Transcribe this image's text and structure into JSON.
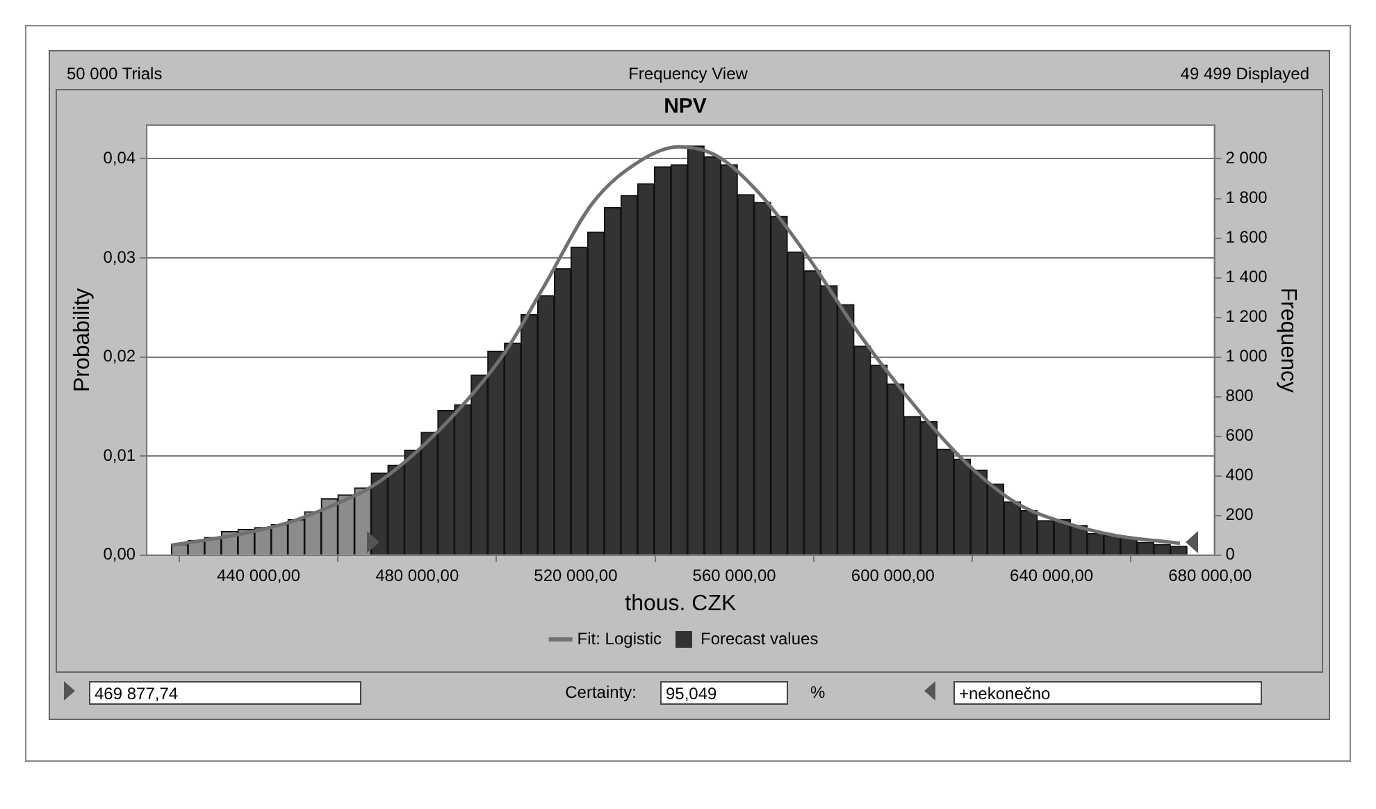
{
  "chart_data": {
    "type": "histogram",
    "title": "NPV",
    "xlabel": "thous. CZK",
    "ylabel": "Probability",
    "y2label": "Frequency",
    "annotations": [
      "50 000 Trials",
      "Frequency View",
      "49 499 Displayed",
      "469 877,74",
      "Certainty:",
      "95,049",
      "%",
      "+nekonečno"
    ],
    "bins": [
      418000,
      422200,
      426400,
      430600,
      434800,
      439000,
      443200,
      447400,
      451600,
      455800,
      460000,
      464200,
      468400,
      472600,
      476800,
      481000,
      485200,
      489400,
      493600,
      497800,
      502000,
      506200,
      510400,
      514600,
      518800,
      523000,
      527200,
      531400,
      535600,
      539800,
      544000,
      548200,
      552400,
      556600,
      560800,
      565000,
      569200,
      573400,
      577600,
      581800,
      586000,
      590200,
      594400,
      598600,
      602800,
      607000,
      611200,
      615400,
      619600,
      623800,
      628000,
      632200,
      636400,
      640600,
      644800,
      649000,
      653200,
      657400,
      661600,
      665800,
      670000,
      674200
    ],
    "series": [
      {
        "name": "Forecast values",
        "color": "#333333",
        "colors": [
          "#8c8c8c",
          "#8c8c8c",
          "#8c8c8c",
          "#8c8c8c",
          "#8c8c8c",
          "#8c8c8c",
          "#8c8c8c",
          "#8c8c8c",
          "#8c8c8c",
          "#8c8c8c",
          "#8c8c8c",
          "#8c8c8c",
          "#333333",
          "#333333",
          "#333333",
          "#333333",
          "#333333",
          "#333333",
          "#333333",
          "#333333",
          "#333333",
          "#333333",
          "#333333",
          "#333333",
          "#333333",
          "#333333",
          "#333333",
          "#333333",
          "#333333",
          "#333333",
          "#333333",
          "#333333",
          "#333333",
          "#333333",
          "#333333",
          "#333333",
          "#333333",
          "#333333",
          "#333333",
          "#333333",
          "#333333",
          "#333333",
          "#333333",
          "#333333",
          "#333333",
          "#333333",
          "#333333",
          "#333333",
          "#333333",
          "#333333",
          "#333333",
          "#333333",
          "#333333",
          "#333333",
          "#333333",
          "#333333",
          "#333333",
          "#333333",
          "#333333",
          "#333333",
          "#333333"
        ],
        "values": [
          0.0011,
          0.0015,
          0.0018,
          0.0024,
          0.0026,
          0.0028,
          0.0031,
          0.0036,
          0.0044,
          0.0057,
          0.0061,
          0.0068,
          0.0083,
          0.0091,
          0.0106,
          0.0124,
          0.0146,
          0.0152,
          0.0182,
          0.0206,
          0.0214,
          0.0243,
          0.0262,
          0.0289,
          0.0311,
          0.0326,
          0.0351,
          0.0363,
          0.0375,
          0.0392,
          0.0394,
          0.0413,
          0.0402,
          0.0394,
          0.0364,
          0.0356,
          0.0342,
          0.0306,
          0.0287,
          0.0272,
          0.0253,
          0.0211,
          0.0192,
          0.0173,
          0.014,
          0.0135,
          0.0107,
          0.0097,
          0.0086,
          0.0072,
          0.0054,
          0.0045,
          0.0035,
          0.0036,
          0.003,
          0.0022,
          0.002,
          0.0018,
          0.0013,
          0.0011,
          0.0009
        ]
      },
      {
        "type": "line",
        "name": "Fit: Logistic",
        "color": "#707070",
        "marker": "none",
        "x": [
          418000,
          436300,
          448400,
          460900,
          468500,
          479200,
          491200,
          502200,
          512100,
          524200,
          536300,
          546100,
          556000,
          567000,
          579100,
          591200,
          607300,
          619300,
          631400,
          643900,
          655900,
          672400
        ],
        "values": [
          0.001,
          0.0022,
          0.0034,
          0.0054,
          0.0069,
          0.0102,
          0.015,
          0.0205,
          0.0272,
          0.0355,
          0.0398,
          0.0412,
          0.0402,
          0.0362,
          0.0298,
          0.0225,
          0.0142,
          0.009,
          0.0052,
          0.0032,
          0.002,
          0.0012
        ]
      }
    ],
    "xlim": [
      411800,
      681100
    ],
    "xticks": [
      {
        "value": 440000,
        "label": "440 000,00"
      },
      {
        "value": 480000,
        "label": "480 000,00"
      },
      {
        "value": 520000,
        "label": "520 000,00"
      },
      {
        "value": 560000,
        "label": "560 000,00"
      },
      {
        "value": 600000,
        "label": "600 000,00"
      },
      {
        "value": 640000,
        "label": "640 000,00"
      },
      {
        "value": 680000,
        "label": "680 000,00"
      }
    ],
    "ylim": [
      0,
      0.0434
    ],
    "yticks": [
      {
        "value": 0,
        "label": "0,00"
      },
      {
        "value": 0.01,
        "label": "0,01"
      },
      {
        "value": 0.02,
        "label": "0,02"
      },
      {
        "value": 0.03,
        "label": "0,03"
      },
      {
        "value": 0.04,
        "label": "0,04"
      }
    ],
    "y2lim": [
      0,
      2170
    ],
    "y2ticks": [
      0,
      200,
      400,
      600,
      800,
      {
        "value": 1000,
        "label": "1 000"
      },
      {
        "value": 1200,
        "label": "1 200"
      },
      {
        "value": 1400,
        "label": "1 400"
      },
      {
        "value": 1600,
        "label": "1 600"
      },
      {
        "value": 1800,
        "label": "1 800"
      },
      {
        "value": 2000,
        "label": "2 000"
      }
    ],
    "grid": "y",
    "legend": "bottom"
  }
}
